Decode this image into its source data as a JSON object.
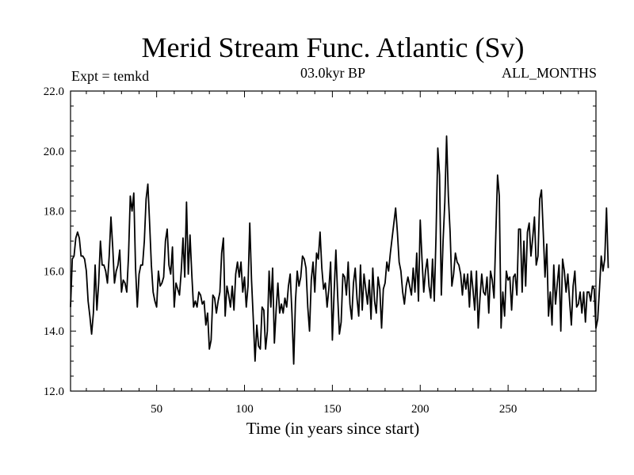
{
  "chart_data": {
    "type": "line",
    "title": "Merid Stream Func. Atlantic (Sv)",
    "subtitle_left": "Expt = temkd",
    "subtitle_center": "03.0kyr BP",
    "subtitle_right": "ALL_MONTHS",
    "xlabel": "Time (in years since start)",
    "ylabel": "",
    "xlim": [
      1,
      300
    ],
    "ylim": [
      12.0,
      22.0
    ],
    "x_ticks": [
      50,
      100,
      150,
      200,
      250
    ],
    "x_tick_labels": [
      "50",
      "100",
      "150",
      "200",
      "250"
    ],
    "y_ticks": [
      12.0,
      14.0,
      16.0,
      18.0,
      20.0,
      22.0
    ],
    "y_tick_labels": [
      "12.0",
      "14.0",
      "16.0",
      "18.0",
      "20.0",
      "22.0"
    ],
    "grid": false,
    "series": [
      {
        "name": "Merid Stream Func. Atlantic",
        "x_start": 1,
        "x_step": 1,
        "values": [
          14.8,
          16.4,
          16.5,
          17.1,
          17.3,
          17.1,
          16.5,
          16.5,
          16.4,
          16.0,
          15.0,
          14.5,
          13.9,
          14.6,
          16.2,
          14.7,
          15.6,
          17.0,
          16.2,
          16.2,
          16.0,
          15.6,
          16.5,
          17.8,
          16.8,
          15.6,
          16.0,
          16.2,
          16.7,
          15.3,
          15.7,
          15.6,
          15.3,
          16.5,
          18.5,
          18.0,
          18.6,
          16.1,
          14.8,
          15.9,
          16.2,
          16.2,
          17.0,
          18.4,
          18.9,
          17.6,
          16.2,
          15.3,
          15.0,
          14.8,
          16.0,
          15.5,
          15.6,
          15.8,
          17.0,
          17.4,
          16.2,
          15.9,
          16.8,
          14.8,
          15.6,
          15.4,
          15.2,
          16.0,
          17.1,
          15.8,
          18.3,
          15.9,
          17.2,
          15.9,
          14.8,
          15.0,
          14.8,
          15.3,
          15.2,
          14.9,
          15.0,
          14.2,
          14.6,
          13.4,
          13.7,
          15.2,
          15.1,
          14.6,
          15.0,
          15.3,
          16.6,
          17.1,
          14.5,
          15.5,
          15.2,
          14.8,
          15.5,
          14.7,
          15.9,
          16.3,
          15.8,
          16.3,
          15.3,
          15.8,
          14.8,
          15.5,
          17.6,
          15.7,
          14.4,
          13.0,
          14.2,
          13.5,
          13.4,
          14.8,
          14.7,
          13.4,
          14.0,
          16.0,
          14.8,
          16.1,
          13.6,
          14.7,
          15.6,
          14.6,
          14.9,
          14.6,
          15.1,
          14.8,
          15.5,
          15.9,
          14.6,
          12.9,
          15.0,
          16.0,
          15.5,
          15.8,
          16.5,
          16.4,
          16.1,
          14.8,
          14.0,
          15.7,
          16.3,
          15.3,
          16.6,
          16.4,
          17.3,
          16.1,
          15.4,
          15.6,
          14.8,
          15.4,
          16.3,
          13.7,
          15.3,
          16.7,
          15.2,
          13.9,
          14.3,
          15.9,
          15.8,
          15.2,
          16.3,
          14.9,
          14.4,
          15.6,
          16.1,
          15.1,
          14.5,
          16.2,
          14.7,
          15.9,
          15.4,
          14.9,
          15.7,
          14.4,
          16.1,
          15.0,
          14.6,
          15.8,
          15.4,
          14.1,
          15.4,
          15.6,
          16.3,
          16.0,
          16.6,
          17.1,
          17.6,
          18.1,
          17.3,
          16.3,
          16.0,
          15.3,
          14.9,
          15.5,
          15.8,
          15.5,
          15.2,
          16.1,
          15.3,
          16.6,
          15.0,
          17.7,
          16.4,
          15.3,
          16.0,
          16.4,
          15.5,
          15.1,
          16.4,
          15.0,
          17.2,
          20.1,
          19.2,
          15.2,
          17.0,
          18.3,
          20.5,
          18.5,
          17.3,
          15.5,
          15.9,
          16.6,
          16.3,
          16.2,
          15.9,
          15.2,
          15.9,
          15.4,
          15.9,
          14.8,
          16.0,
          15.4,
          14.7,
          16.0,
          14.1,
          15.1,
          15.9,
          15.3,
          15.2,
          15.8,
          14.6,
          16.0,
          15.7,
          15.1,
          17.2,
          19.2,
          18.5,
          14.1,
          15.3,
          14.5,
          16.0,
          15.7,
          15.8,
          14.7,
          15.8,
          15.9,
          15.2,
          17.4,
          17.4,
          15.3,
          17.0,
          15.5,
          17.3,
          17.6,
          16.5,
          17.1,
          17.8,
          16.2,
          16.5,
          18.4,
          18.7,
          17.3,
          15.8,
          16.9,
          14.5,
          15.3,
          14.2,
          16.2,
          14.9,
          15.6,
          16.2,
          14.0,
          16.4,
          16.0,
          15.3,
          15.9,
          15.0,
          14.2,
          15.5,
          16.0,
          14.8,
          14.9,
          15.3,
          14.6,
          15.3,
          14.3,
          15.3,
          15.3,
          15.0,
          15.5,
          15.4,
          14.1,
          14.4,
          15.4,
          16.5,
          16.0,
          16.4,
          18.1,
          16.1
        ]
      }
    ]
  }
}
